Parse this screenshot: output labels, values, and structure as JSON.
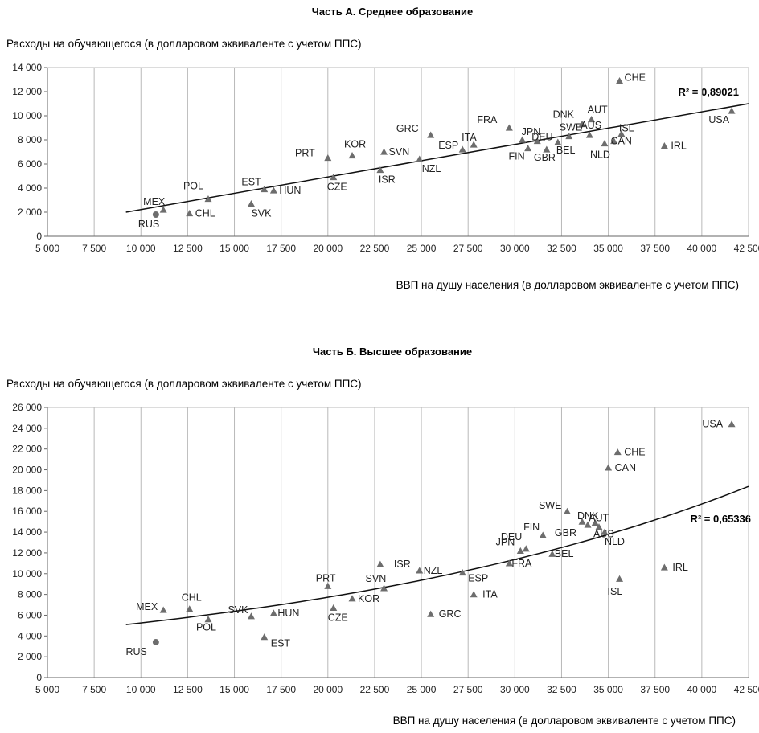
{
  "charts": [
    {
      "title": "Часть А. Среднее образование",
      "ylabel": "Расходы на обучающегося (в долларовом эквиваленте с учетом ППС)",
      "xlabel": "ВВП на душу населения (в долларовом эквиваленте с учетом  ППС)",
      "r2": "R² = 0,89021"
    },
    {
      "title": "Часть Б. Высшее образование",
      "ylabel": "Расходы на обучающегося (в долларовом эквиваленте с учетом ППС)",
      "xlabel": "ВВП на душу населения (в долларовом эквиваленте с учетом ППС)",
      "r2": "R² = 0,65336"
    }
  ],
  "chart_data": [
    {
      "type": "scatter",
      "title": "Часть А. Среднее образование",
      "xlabel": "ВВП на душу населения (в долларовом эквиваленте с учетом  ППС)",
      "ylabel": "Расходы на обучающегося (в долларовом эквиваленте с учетом ППС)",
      "xlim": [
        5000,
        42500
      ],
      "ylim": [
        0,
        14000
      ],
      "x_ticks": [
        "5 000",
        "7 500",
        "10 000",
        "12 500",
        "15 000",
        "17 500",
        "20 000",
        "22 500",
        "25 000",
        "27 500",
        "30 000",
        "32 500",
        "35 000",
        "37 500",
        "40 000",
        "42 500"
      ],
      "y_ticks": [
        "0",
        "2 000",
        "4 000",
        "6 000",
        "8 000",
        "10 000",
        "12 000",
        "14 000"
      ],
      "grid": "vertical",
      "trend": {
        "type": "linear",
        "from": [
          9200,
          2000
        ],
        "to": [
          42500,
          11000
        ],
        "label": "R² = 0,89021"
      },
      "points": [
        {
          "label": "RUS",
          "x": 10800,
          "y": 1800,
          "marker": "circle"
        },
        {
          "label": "MEX",
          "x": 11200,
          "y": 2200,
          "marker": "triangle"
        },
        {
          "label": "CHL",
          "x": 12600,
          "y": 1900,
          "marker": "triangle"
        },
        {
          "label": "POL",
          "x": 13600,
          "y": 3100,
          "marker": "triangle"
        },
        {
          "label": "SVK",
          "x": 15900,
          "y": 2700,
          "marker": "triangle"
        },
        {
          "label": "EST",
          "x": 16600,
          "y": 3900,
          "marker": "triangle"
        },
        {
          "label": "HUN",
          "x": 17100,
          "y": 3800,
          "marker": "triangle"
        },
        {
          "label": "PRT",
          "x": 20000,
          "y": 6500,
          "marker": "triangle"
        },
        {
          "label": "CZE",
          "x": 20300,
          "y": 4900,
          "marker": "triangle"
        },
        {
          "label": "KOR",
          "x": 21300,
          "y": 6700,
          "marker": "triangle"
        },
        {
          "label": "ISR",
          "x": 22800,
          "y": 5500,
          "marker": "triangle"
        },
        {
          "label": "SVN",
          "x": 23000,
          "y": 7000,
          "marker": "triangle"
        },
        {
          "label": "NZL",
          "x": 24900,
          "y": 6400,
          "marker": "triangle"
        },
        {
          "label": "GRC",
          "x": 25500,
          "y": 8400,
          "marker": "triangle"
        },
        {
          "label": "ESP",
          "x": 27200,
          "y": 7200,
          "marker": "triangle"
        },
        {
          "label": "ITA",
          "x": 27800,
          "y": 7600,
          "marker": "triangle"
        },
        {
          "label": "FRA",
          "x": 29700,
          "y": 9000,
          "marker": "triangle"
        },
        {
          "label": "JPN",
          "x": 30400,
          "y": 8000,
          "marker": "triangle"
        },
        {
          "label": "FIN",
          "x": 30700,
          "y": 7300,
          "marker": "triangle"
        },
        {
          "label": "DEU",
          "x": 31200,
          "y": 7900,
          "marker": "triangle"
        },
        {
          "label": "GBR",
          "x": 31700,
          "y": 7200,
          "marker": "triangle"
        },
        {
          "label": "BEL",
          "x": 32300,
          "y": 7800,
          "marker": "triangle"
        },
        {
          "label": "SWE",
          "x": 32900,
          "y": 8300,
          "marker": "triangle"
        },
        {
          "label": "DNK",
          "x": 33600,
          "y": 9300,
          "marker": "triangle"
        },
        {
          "label": "AUT",
          "x": 34100,
          "y": 9700,
          "marker": "triangle"
        },
        {
          "label": "AUS",
          "x": 34000,
          "y": 8400,
          "marker": "triangle"
        },
        {
          "label": "NLD",
          "x": 34800,
          "y": 7700,
          "marker": "triangle"
        },
        {
          "label": "CAN",
          "x": 35300,
          "y": 7900,
          "marker": "triangle"
        },
        {
          "label": "ISL",
          "x": 35700,
          "y": 8500,
          "marker": "triangle"
        },
        {
          "label": "CHE",
          "x": 35600,
          "y": 12900,
          "marker": "triangle"
        },
        {
          "label": "IRL",
          "x": 38000,
          "y": 7500,
          "marker": "triangle"
        },
        {
          "label": "USA",
          "x": 41600,
          "y": 10400,
          "marker": "triangle"
        }
      ]
    },
    {
      "type": "scatter",
      "title": "Часть Б. Высшее образование",
      "xlabel": "ВВП на душу населения (в долларовом эквиваленте с учетом ППС)",
      "ylabel": "Расходы на обучающегося (в долларовом эквиваленте с учетом ППС)",
      "xlim": [
        5000,
        42500
      ],
      "ylim": [
        0,
        26000
      ],
      "x_ticks": [
        "5 000",
        "7 500",
        "10 000",
        "12 500",
        "15 000",
        "17 500",
        "20 000",
        "22 500",
        "25 000",
        "27 500",
        "30 000",
        "32 500",
        "35 000",
        "37 500",
        "40 000",
        "42 500"
      ],
      "y_ticks": [
        "0",
        "2 000",
        "4 000",
        "6 000",
        "8 000",
        "10 000",
        "12 000",
        "14 000",
        "16 000",
        "18 000",
        "20 000",
        "22 000",
        "24 000",
        "26 000"
      ],
      "grid": "vertical",
      "trend": {
        "type": "exponential",
        "from": [
          9200,
          5100
        ],
        "to": [
          42500,
          18400
        ],
        "label": "R² = 0,65336"
      },
      "points": [
        {
          "label": "RUS",
          "x": 10800,
          "y": 3400,
          "marker": "circle"
        },
        {
          "label": "MEX",
          "x": 11200,
          "y": 6500,
          "marker": "triangle"
        },
        {
          "label": "CHL",
          "x": 12600,
          "y": 6600,
          "marker": "triangle"
        },
        {
          "label": "POL",
          "x": 13600,
          "y": 5600,
          "marker": "triangle"
        },
        {
          "label": "SVK",
          "x": 15900,
          "y": 5900,
          "marker": "triangle"
        },
        {
          "label": "EST",
          "x": 16600,
          "y": 3900,
          "marker": "triangle"
        },
        {
          "label": "HUN",
          "x": 17100,
          "y": 6200,
          "marker": "triangle"
        },
        {
          "label": "PRT",
          "x": 20000,
          "y": 8800,
          "marker": "triangle"
        },
        {
          "label": "CZE",
          "x": 20300,
          "y": 6700,
          "marker": "triangle"
        },
        {
          "label": "KOR",
          "x": 21300,
          "y": 7600,
          "marker": "triangle"
        },
        {
          "label": "ISR",
          "x": 22800,
          "y": 10900,
          "marker": "triangle"
        },
        {
          "label": "SVN",
          "x": 23000,
          "y": 8600,
          "marker": "triangle"
        },
        {
          "label": "NZL",
          "x": 24900,
          "y": 10300,
          "marker": "triangle"
        },
        {
          "label": "GRC",
          "x": 25500,
          "y": 6100,
          "marker": "triangle"
        },
        {
          "label": "ESP",
          "x": 27200,
          "y": 10100,
          "marker": "triangle"
        },
        {
          "label": "ITA",
          "x": 27800,
          "y": 8000,
          "marker": "triangle"
        },
        {
          "label": "FRA",
          "x": 29700,
          "y": 11000,
          "marker": "triangle"
        },
        {
          "label": "JPN",
          "x": 30300,
          "y": 12200,
          "marker": "triangle"
        },
        {
          "label": "DEU",
          "x": 30600,
          "y": 12400,
          "marker": "triangle"
        },
        {
          "label": "FIN",
          "x": 31500,
          "y": 13700,
          "marker": "triangle"
        },
        {
          "label": "BEL",
          "x": 32000,
          "y": 11900,
          "marker": "triangle"
        },
        {
          "label": "SWE",
          "x": 32800,
          "y": 16000,
          "marker": "triangle"
        },
        {
          "label": "DNK",
          "x": 33600,
          "y": 15000,
          "marker": "triangle"
        },
        {
          "label": "GBR",
          "x": 33900,
          "y": 14700,
          "marker": "triangle"
        },
        {
          "label": "AUT",
          "x": 34300,
          "y": 14900,
          "marker": "triangle"
        },
        {
          "label": "AUS",
          "x": 34500,
          "y": 14500,
          "marker": "triangle"
        },
        {
          "label": "NLD",
          "x": 34800,
          "y": 14000,
          "marker": "triangle"
        },
        {
          "label": "CAN",
          "x": 35000,
          "y": 20200,
          "marker": "triangle"
        },
        {
          "label": "CHE",
          "x": 35500,
          "y": 21700,
          "marker": "triangle"
        },
        {
          "label": "ISL",
          "x": 35600,
          "y": 9500,
          "marker": "triangle"
        },
        {
          "label": "IRL",
          "x": 38000,
          "y": 10600,
          "marker": "triangle"
        },
        {
          "label": "USA",
          "x": 41600,
          "y": 24400,
          "marker": "triangle"
        }
      ]
    }
  ]
}
